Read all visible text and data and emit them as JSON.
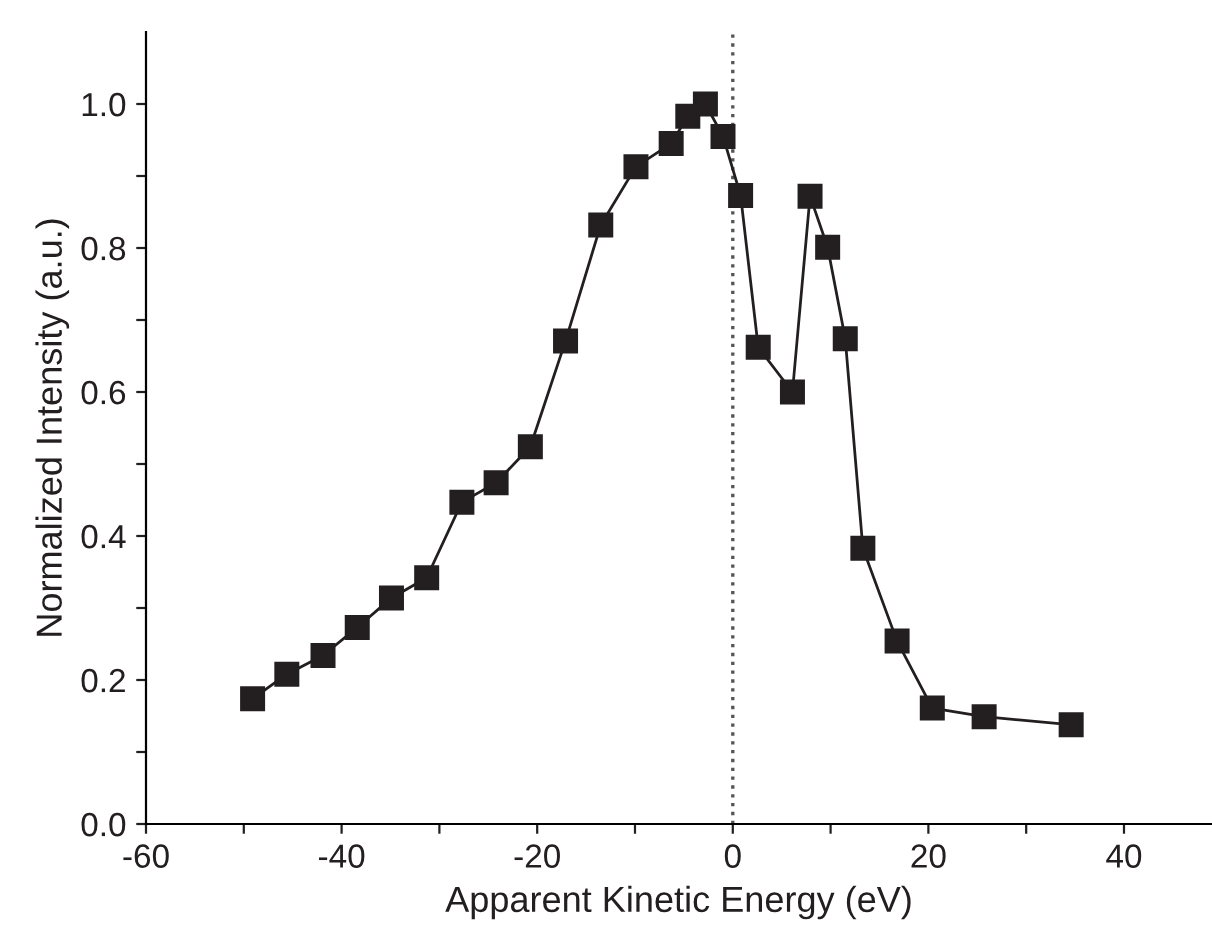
{
  "chart_data": {
    "type": "line",
    "xlabel": "Apparent Kinetic Energy (eV)",
    "ylabel": "Normalized Intensity (a.u.)",
    "x": [
      -49.1,
      -45.6,
      -41.9,
      -38.4,
      -34.9,
      -31.3,
      -27.7,
      -24.2,
      -20.7,
      -17.1,
      -13.5,
      -9.9,
      -6.3,
      -4.6,
      -2.8,
      -1.0,
      0.8,
      2.6,
      6.1,
      7.9,
      9.7,
      11.5,
      13.3,
      16.8,
      20.4,
      25.7,
      34.6
    ],
    "series": [
      {
        "color": "#231f20",
        "values": [
          0.174,
          0.208,
          0.234,
          0.273,
          0.314,
          0.342,
          0.447,
          0.474,
          0.524,
          0.671,
          0.832,
          0.913,
          0.945,
          0.983,
          1.0,
          0.955,
          0.873,
          0.662,
          0.6,
          0.872,
          0.801,
          0.674,
          0.383,
          0.254,
          0.161,
          0.149,
          0.138
        ]
      }
    ],
    "marker": "square",
    "line_style": "solid",
    "grid": false,
    "legend": false,
    "xlim": [
      -60,
      49
    ],
    "ylim": [
      0,
      1.1
    ],
    "xticks": [
      -60,
      {
        "value": -50,
        "label": null
      },
      -40,
      {
        "value": -30,
        "label": null
      },
      -20,
      {
        "value": -10,
        "label": null
      },
      0,
      {
        "value": 10,
        "label": null
      },
      20,
      {
        "value": 30,
        "label": null
      },
      40
    ],
    "yticks": [
      "0.0",
      {
        "value": 0.1,
        "label": null
      },
      {
        "value": 0.2,
        "label": "0.2"
      },
      {
        "value": 0.3,
        "label": null
      },
      {
        "value": 0.4,
        "label": "0.4"
      },
      {
        "value": 0.5,
        "label": null
      },
      {
        "value": 0.6,
        "label": "0.6"
      },
      {
        "value": 0.7,
        "label": null
      },
      {
        "value": 0.8,
        "label": "0.8"
      },
      {
        "value": 0.9,
        "label": null
      },
      {
        "value": 1.0,
        "label": "1.0"
      }
    ],
    "ref_lines": [
      {
        "axis": "x",
        "value": 0,
        "color": "#555555",
        "line_style": "dotted"
      }
    ]
  }
}
